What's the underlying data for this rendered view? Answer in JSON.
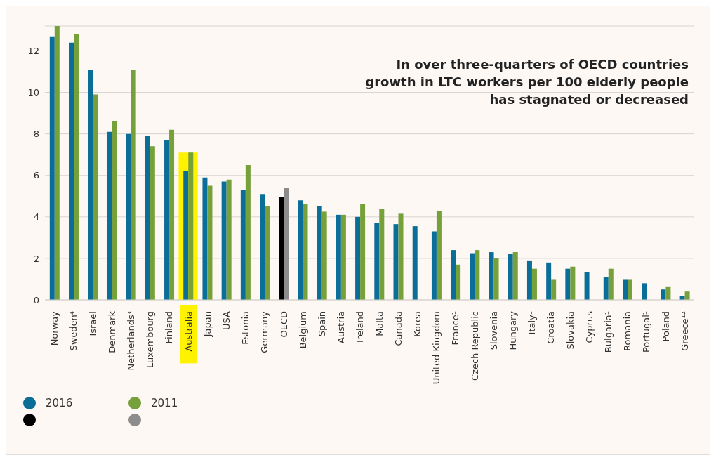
{
  "chart_data": {
    "type": "bar",
    "title": "In over three-quarters of OECD countries growth in LTC workers per 100 elderly people has stagnated or decreased",
    "categories": [
      "Norway",
      "Sweden⁴",
      "Israel",
      "Denmark",
      "Netherlands³",
      "Luxembourg",
      "Finland",
      "Australia",
      "Japan",
      "USA",
      "Estonia",
      "Germany",
      "OECD",
      "Belgium",
      "Spain",
      "Austria",
      "Ireland",
      "Malta",
      "Canada",
      "Korea",
      "United Kingdom",
      "France¹",
      "Czech Republic",
      "Slovenia",
      "Hungary",
      "Italy¹",
      "Croatia",
      "Slovakia",
      "Cyprus",
      "Bulgaria¹",
      "Romania",
      "Portugal¹",
      "Poland",
      "Greece¹²"
    ],
    "series": [
      {
        "name": "2016",
        "color": "#0b6e99",
        "colors": [
          "#0b6e99",
          "#0b6e99",
          "#0b6e99",
          "#0b6e99",
          "#0b6e99",
          "#0b6e99",
          "#0b6e99",
          "#0b6e99",
          "#0b6e99",
          "#0b6e99",
          "#0b6e99",
          "#0b6e99",
          "#000000",
          "#0b6e99",
          "#0b6e99",
          "#0b6e99",
          "#0b6e99",
          "#0b6e99",
          "#0b6e99",
          "#0b6e99",
          "#0b6e99",
          "#0b6e99",
          "#0b6e99",
          "#0b6e99",
          "#0b6e99",
          "#0b6e99",
          "#0b6e99",
          "#0b6e99",
          "#0b6e99",
          "#0b6e99",
          "#0b6e99",
          "#0b6e99",
          "#0b6e99",
          "#0b6e99"
        ],
        "values": [
          12.7,
          12.4,
          11.1,
          8.1,
          8.0,
          7.9,
          7.7,
          6.2,
          5.9,
          5.7,
          5.3,
          5.1,
          4.95,
          4.8,
          4.5,
          4.1,
          4.0,
          3.7,
          3.65,
          3.55,
          3.3,
          2.4,
          2.25,
          2.3,
          2.2,
          1.9,
          1.8,
          1.5,
          1.35,
          1.1,
          1.0,
          0.8,
          0.5,
          0.2
        ]
      },
      {
        "name": "2011",
        "color": "#76a03a",
        "colors": [
          "#76a03a",
          "#76a03a",
          "#76a03a",
          "#76a03a",
          "#76a03a",
          "#76a03a",
          "#76a03a",
          "#76a03a",
          "#76a03a",
          "#76a03a",
          "#76a03a",
          "#76a03a",
          "#8c8c8c",
          "#76a03a",
          "#76a03a",
          "#76a03a",
          "#76a03a",
          "#76a03a",
          "#76a03a",
          "#76a03a",
          "#76a03a",
          "#76a03a",
          "#76a03a",
          "#76a03a",
          "#76a03a",
          "#76a03a",
          "#76a03a",
          "#76a03a",
          "#76a03a",
          "#76a03a",
          "#76a03a",
          "#76a03a",
          "#76a03a",
          "#76a03a"
        ],
        "values": [
          13.2,
          12.8,
          9.9,
          8.6,
          11.1,
          7.4,
          8.2,
          7.1,
          5.5,
          5.8,
          6.5,
          4.5,
          5.4,
          4.6,
          4.25,
          4.1,
          4.6,
          4.4,
          4.15,
          null,
          4.3,
          1.7,
          2.4,
          2.0,
          2.3,
          1.5,
          1.0,
          1.6,
          null,
          1.5,
          1.0,
          null,
          0.65,
          0.4
        ]
      }
    ],
    "ylim": [
      0,
      13.2
    ],
    "yticks": [
      0,
      2,
      4,
      6,
      8,
      10,
      12
    ],
    "grid": "y",
    "legend": "bottom left",
    "bands": [
      {
        "axis": "x",
        "from": "Australia",
        "to": "Australia",
        "color": "#fff200"
      }
    ]
  }
}
